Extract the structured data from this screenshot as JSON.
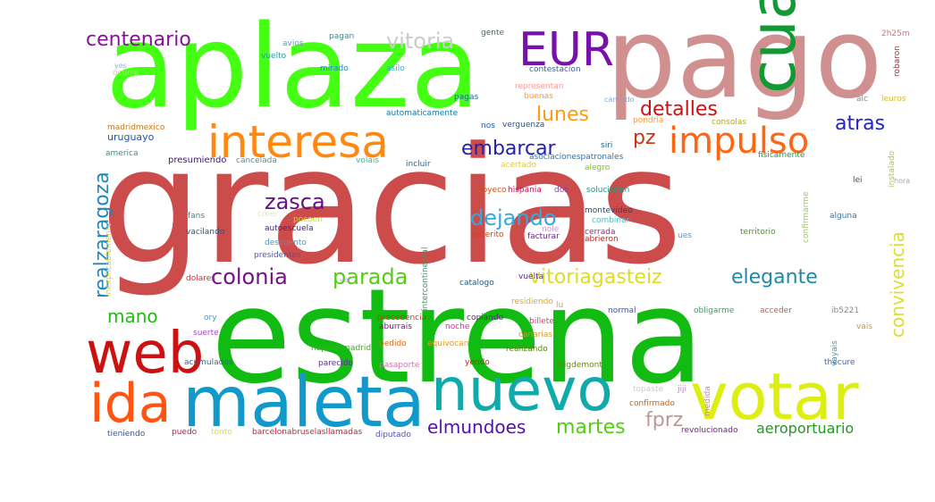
{
  "words": [
    {
      "text": "gracias",
      "color": "#cc4c4c"
    },
    {
      "text": "estrena",
      "color": "#11bb11"
    },
    {
      "text": "aplaza",
      "color": "#44ff11"
    },
    {
      "text": "pago",
      "color": "#d09090"
    },
    {
      "text": "cuanto",
      "color": "#119933"
    },
    {
      "text": "maleta",
      "color": "#1199cc"
    },
    {
      "text": "nuevo",
      "color": "#11aaaa"
    },
    {
      "text": "votar",
      "color": "#ddee11"
    },
    {
      "text": "web",
      "color": "#cc1111"
    },
    {
      "text": "ida",
      "color": "#ff5511"
    },
    {
      "text": "interesa",
      "color": "#ff8811"
    },
    {
      "text": "EUR",
      "color": "#7711aa"
    },
    {
      "text": "impulso",
      "color": "#ff6611"
    },
    {
      "text": "vitoria",
      "color": "#cccccc"
    },
    {
      "text": "centenario",
      "color": "#881199"
    },
    {
      "text": "detalles",
      "color": "#cc1111"
    },
    {
      "text": "lunes",
      "color": "#ff9911"
    },
    {
      "text": "embarcar",
      "color": "#2222aa"
    },
    {
      "text": "pz",
      "color": "#cc3311"
    },
    {
      "text": "atras",
      "color": "#2222cc"
    },
    {
      "text": "zasca",
      "color": "#661188"
    },
    {
      "text": "dejando",
      "color": "#33aadd"
    },
    {
      "text": "realzaragoza",
      "color": "#2288bb"
    },
    {
      "text": "colonia",
      "color": "#771188"
    },
    {
      "text": "parada",
      "color": "#55cc11"
    },
    {
      "text": "vitoriagasteiz",
      "color": "#dddd22"
    },
    {
      "text": "elegante",
      "color": "#2288aa"
    },
    {
      "text": "convivencia",
      "color": "#dddd33"
    },
    {
      "text": "mano",
      "color": "#22bb11"
    },
    {
      "text": "elmundoes",
      "color": "#5511aa"
    },
    {
      "text": "martes",
      "color": "#55cc11"
    },
    {
      "text": "fprz",
      "color": "#bb9999"
    },
    {
      "text": "aeroportuario",
      "color": "#229922"
    },
    {
      "text": "uruguayo",
      "color": "#2255aa"
    },
    {
      "text": "madridmexico",
      "color": "#cc7711"
    },
    {
      "text": "america",
      "color": "#229988"
    },
    {
      "text": "presumiendo",
      "color": "#441188"
    },
    {
      "text": "cancelada",
      "color": "#449999"
    },
    {
      "text": "volais",
      "color": "#33bbaa"
    },
    {
      "text": "incluir",
      "color": "#226699"
    },
    {
      "text": "fisicamente",
      "color": "#229944"
    },
    {
      "text": "asociacionespatronales",
      "color": "#2277bb"
    },
    {
      "text": "alegro",
      "color": "#88bb22"
    },
    {
      "text": "acertado",
      "color": "#ddcc44"
    },
    {
      "text": "automaticamente",
      "color": "#1177aa"
    },
    {
      "text": "verguenza",
      "color": "#225599"
    },
    {
      "text": "consolas",
      "color": "#aaaa22"
    },
    {
      "text": "siri",
      "color": "#226688"
    },
    {
      "text": "nos",
      "color": "#2255aa"
    },
    {
      "text": "pondria",
      "color": "#ff9933"
    },
    {
      "text": "contestacion",
      "color": "#2266bb"
    },
    {
      "text": "representan",
      "color": "#ff9999"
    },
    {
      "text": "buenas",
      "color": "#ff9933"
    },
    {
      "text": "pagas",
      "color": "#2266aa"
    },
    {
      "text": "mirado",
      "color": "#2288bb"
    },
    {
      "text": "asilo",
      "color": "#44aacc"
    },
    {
      "text": "vuelto",
      "color": "#2299aa"
    },
    {
      "text": "avios",
      "color": "#6699aa"
    },
    {
      "text": "pagan",
      "color": "#448888"
    },
    {
      "text": "gente",
      "color": "#556666"
    },
    {
      "text": "2h25m",
      "color": "#cc7777"
    },
    {
      "text": "robaron",
      "color": "#aa3333"
    },
    {
      "text": "alc",
      "color": "#888888"
    },
    {
      "text": "leuros",
      "color": "#ddbb22"
    },
    {
      "text": "canarias",
      "color": "#cc9933"
    },
    {
      "text": "fans",
      "color": "#229988"
    },
    {
      "text": "vacilando",
      "color": "#225588"
    },
    {
      "text": "autoescuela",
      "color": "#442288"
    },
    {
      "text": "descuento",
      "color": "#4499cc"
    },
    {
      "text": "presidentes",
      "color": "#5555aa"
    },
    {
      "text": "pocoen",
      "color": "#ccdd22"
    },
    {
      "text": "hoyeco",
      "color": "#cc5511"
    },
    {
      "text": "hispania",
      "color": "#cc1155"
    },
    {
      "text": "dos",
      "color": "#884499"
    },
    {
      "text": "solucionan",
      "color": "#229988"
    },
    {
      "text": "montevideo",
      "color": "#224488"
    },
    {
      "text": "combinar",
      "color": "#55bbbb"
    },
    {
      "text": "enterito",
      "color": "#cc4422"
    },
    {
      "text": "facturar",
      "color": "#662288"
    },
    {
      "text": "cerrada",
      "color": "#aa2299"
    },
    {
      "text": "abrieron",
      "color": "#cc2222"
    },
    {
      "text": "territorio",
      "color": "#449922"
    },
    {
      "text": "alguna",
      "color": "#3377aa"
    },
    {
      "text": "lei",
      "color": "#663399"
    },
    {
      "text": "dolares",
      "color": "#cc3344"
    },
    {
      "text": "catalogo",
      "color": "#225577"
    },
    {
      "text": "vuelta",
      "color": "#662299"
    },
    {
      "text": "residiendo",
      "color": "#ddaa33"
    },
    {
      "text": "normal",
      "color": "#4455aa"
    },
    {
      "text": "obligarme",
      "color": "#449966"
    },
    {
      "text": "acceder",
      "color": "#cc5555"
    },
    {
      "text": "ory",
      "color": "#4499dd"
    },
    {
      "text": "suerte",
      "color": "#aa44cc"
    },
    {
      "text": "procedencia",
      "color": "#cc3311"
    },
    {
      "text": "copiando",
      "color": "#662288"
    },
    {
      "text": "billete",
      "color": "#dd4466"
    },
    {
      "text": "aburrais",
      "color": "#771177"
    },
    {
      "text": "noche",
      "color": "#cc3399"
    },
    {
      "text": "pedido",
      "color": "#dd6611"
    },
    {
      "text": "equivocan",
      "color": "#dd9922"
    },
    {
      "text": "napolesmadrid",
      "color": "#44aa22"
    },
    {
      "text": "yendo",
      "color": "#cc2211"
    },
    {
      "text": "realizando",
      "color": "#558811"
    },
    {
      "text": "acumulados",
      "color": "#3366aa"
    },
    {
      "text": "parecido",
      "color": "#553388"
    },
    {
      "text": "pasaporte",
      "color": "#cc77aa"
    },
    {
      "text": "fuigdemont",
      "color": "#668811"
    },
    {
      "text": "ib5221",
      "color": "#888888"
    },
    {
      "text": "vais",
      "color": "#cc9933"
    },
    {
      "text": "thecure",
      "color": "#4466aa"
    },
    {
      "text": "jiji",
      "color": "#cc77cc"
    },
    {
      "text": "topaste",
      "color": "#cccccc"
    },
    {
      "text": "confirmado",
      "color": "#cc6611"
    },
    {
      "text": "diputado",
      "color": "#5555aa"
    },
    {
      "text": "barcelonabruselasllamadas",
      "color": "#cc2233"
    },
    {
      "text": "revolucionado",
      "color": "#772288"
    },
    {
      "text": "tieniendo",
      "color": "#3355aa"
    },
    {
      "text": "puedo",
      "color": "#aa2255"
    },
    {
      "text": "tonto",
      "color": "#dddd33"
    },
    {
      "text": "intercontinental",
      "color": "#339966"
    },
    {
      "text": "inexplicablemente",
      "color": "#ddcc44"
    },
    {
      "text": "confirmarme",
      "color": "#99cc55"
    },
    {
      "text": "instalado",
      "color": "#aacc44"
    },
    {
      "text": "vayais",
      "color": "#4499bb"
    },
    {
      "text": "medida",
      "color": "#cc88aa"
    },
    {
      "text": "ocurre",
      "color": "#cccc99"
    },
    {
      "text": "creer",
      "color": "#ddeeaa"
    },
    {
      "text": "ues",
      "color": "#5599cc"
    },
    {
      "text": "nole",
      "color": "#cc99cc"
    },
    {
      "text": "lu",
      "color": "#ccaa44"
    },
    {
      "text": "hora",
      "color": "#aaaaaa"
    },
    {
      "text": "ver",
      "color": "#bbaacc"
    },
    {
      "text": "cansado",
      "color": "#77aadd"
    },
    {
      "text": "yes",
      "color": "#88bbcc"
    }
  ]
}
